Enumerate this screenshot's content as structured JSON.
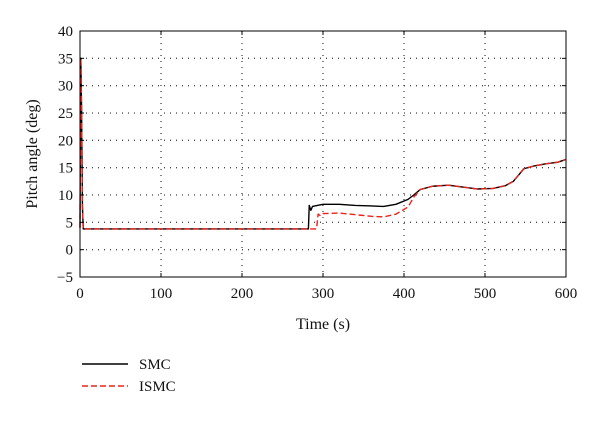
{
  "chart_data": {
    "type": "line",
    "title": "",
    "xlabel": "Time (s)",
    "ylabel": "Pitch angle (deg)",
    "xlim": [
      0,
      600
    ],
    "ylim": [
      -5,
      40
    ],
    "xticks": [
      0,
      100,
      200,
      300,
      400,
      500,
      600
    ],
    "yticks": [
      -5,
      0,
      5,
      10,
      15,
      20,
      25,
      30,
      35,
      40
    ],
    "grid": true,
    "legend_position": "bottom-left, below plot",
    "series": [
      {
        "name": "SMC",
        "color": "#000000",
        "style": "solid",
        "x": [
          0,
          1,
          2,
          3,
          4,
          100,
          200,
          280,
          282,
          283,
          285,
          287,
          290,
          300,
          320,
          340,
          360,
          375,
          390,
          405,
          412,
          420,
          435,
          455,
          475,
          490,
          510,
          525,
          535,
          548,
          560,
          575,
          590,
          600
        ],
        "y": [
          4,
          35,
          25,
          8,
          3.8,
          3.8,
          3.8,
          3.8,
          3.8,
          8.1,
          7.2,
          7.9,
          8.0,
          8.3,
          8.3,
          8.1,
          8.0,
          7.9,
          8.3,
          9.2,
          10.0,
          11.0,
          11.6,
          11.8,
          11.4,
          11.1,
          11.2,
          11.7,
          12.5,
          14.8,
          15.3,
          15.7,
          16.0,
          16.5
        ]
      },
      {
        "name": "ISMC",
        "color": "#e8231c",
        "style": "dashed",
        "x": [
          0,
          1,
          2,
          3,
          4,
          100,
          200,
          290,
          292,
          294,
          297,
          300,
          320,
          340,
          360,
          375,
          390,
          405,
          412,
          420,
          435,
          455,
          475,
          490,
          510,
          525,
          535,
          548,
          560,
          575,
          590,
          600
        ],
        "y": [
          4,
          35,
          25,
          8,
          3.8,
          3.8,
          3.8,
          3.8,
          3.8,
          6.5,
          6.2,
          6.6,
          6.7,
          6.4,
          6.1,
          6.0,
          6.5,
          7.8,
          9.6,
          11.0,
          11.6,
          11.8,
          11.4,
          11.1,
          11.2,
          11.7,
          12.5,
          14.8,
          15.3,
          15.7,
          16.0,
          16.5
        ]
      }
    ]
  }
}
